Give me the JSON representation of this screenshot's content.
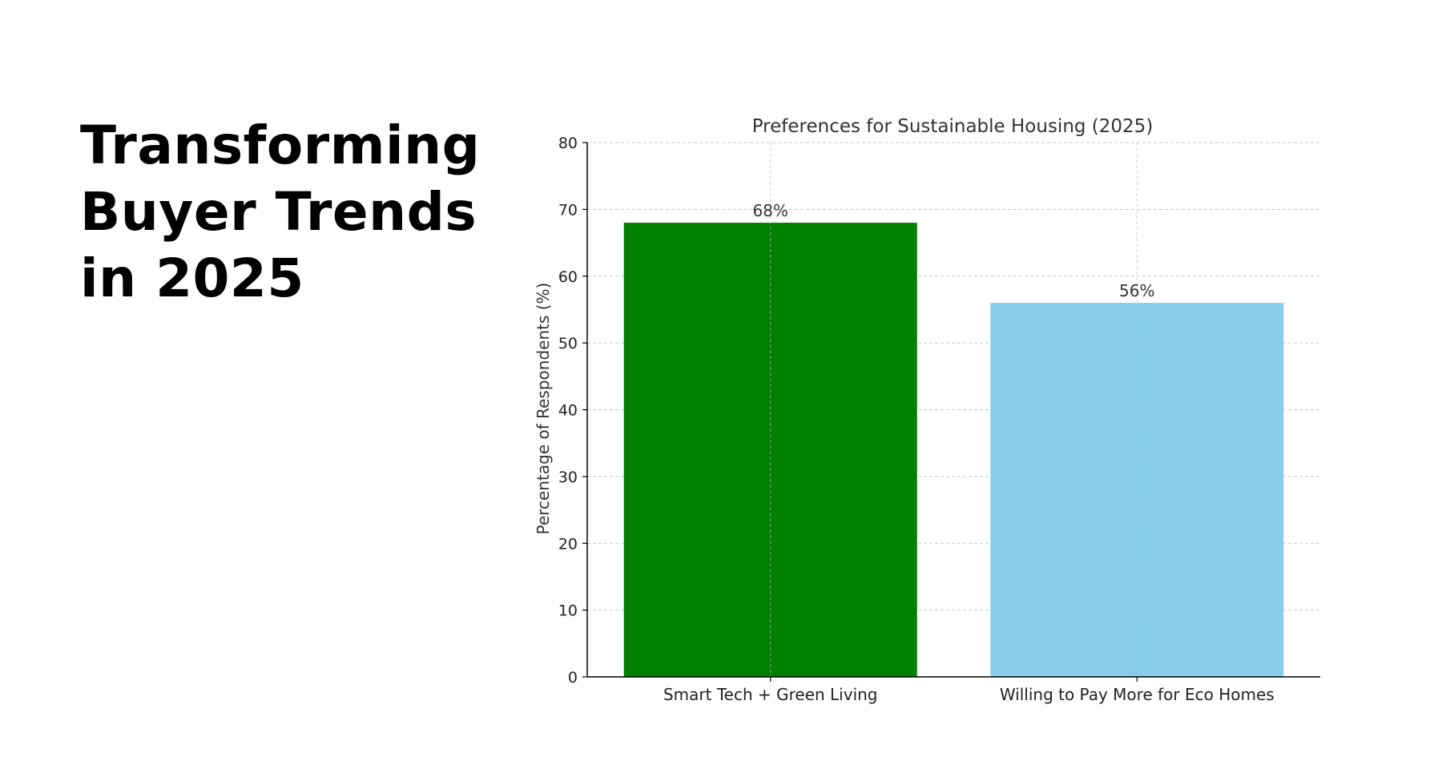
{
  "headline": {
    "lines": [
      "Transforming",
      "Buyer Trends",
      "in 2025"
    ]
  },
  "chart_data": {
    "type": "bar",
    "title": "Preferences for Sustainable Housing (2025)",
    "xlabel": "",
    "ylabel": "Percentage of Respondents (%)",
    "categories": [
      "Smart Tech + Green Living",
      "Willing to Pay More for Eco Homes"
    ],
    "values": [
      68,
      56
    ],
    "data_labels": [
      "68%",
      "56%"
    ],
    "colors": [
      "#008000",
      "#87CEEB"
    ],
    "ylim": [
      0,
      80
    ],
    "yticks": [
      0,
      10,
      20,
      30,
      40,
      50,
      60,
      70,
      80
    ],
    "grid": true,
    "legend": "none"
  }
}
